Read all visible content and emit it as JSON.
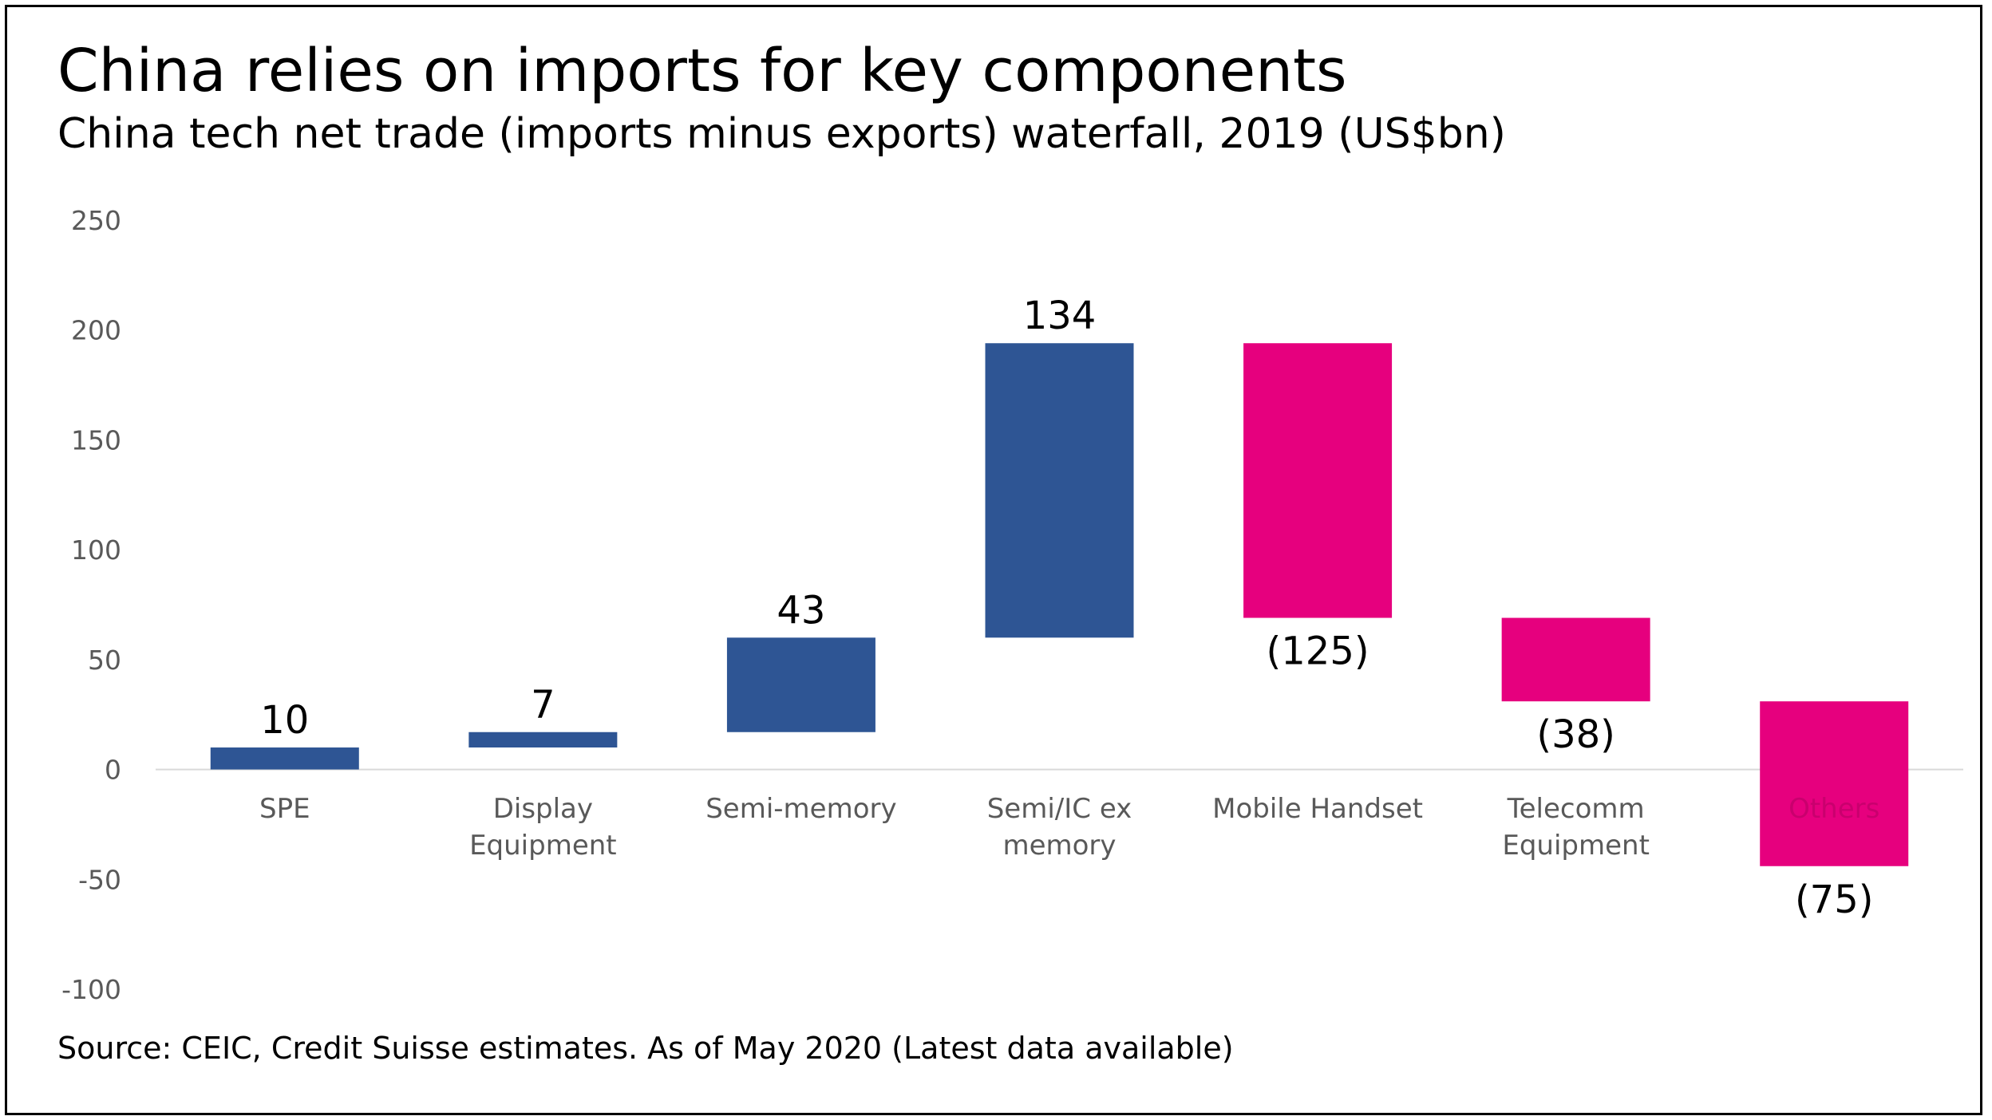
{
  "title": "China relies on imports for key components",
  "subtitle": "China tech net trade (imports minus exports) waterfall, 2019 (US$bn)",
  "source": "Source: CEIC, Credit Suisse estimates. As of May 2020 (Latest data available)",
  "colors": {
    "increase": "#2E5594",
    "decrease": "#E6007E",
    "axis": "#D9D9D9",
    "tick_text": "#595959"
  },
  "chart_data": {
    "type": "bar",
    "subtype": "waterfall",
    "categories": [
      "SPE",
      "Display Equipment",
      "Semi-memory",
      "Semi/IC ex memory",
      "Mobile Handset",
      "Telecomm Equipment",
      "Others"
    ],
    "category_lines": [
      [
        "SPE"
      ],
      [
        "Display",
        "Equipment"
      ],
      [
        "Semi-memory"
      ],
      [
        "Semi/IC ex",
        "memory"
      ],
      [
        "Mobile Handset"
      ],
      [
        "Telecomm",
        "Equipment"
      ],
      [
        "Others"
      ]
    ],
    "values": [
      10,
      7,
      43,
      134,
      -125,
      -38,
      -75
    ],
    "data_labels": [
      "10",
      "7",
      "43",
      "134",
      "(125)",
      "(38)",
      "(75)"
    ],
    "yticks": [
      250,
      200,
      150,
      100,
      50,
      0,
      -50,
      -100
    ],
    "ylim": [
      -100,
      250
    ],
    "grid": false,
    "legend": "none"
  }
}
